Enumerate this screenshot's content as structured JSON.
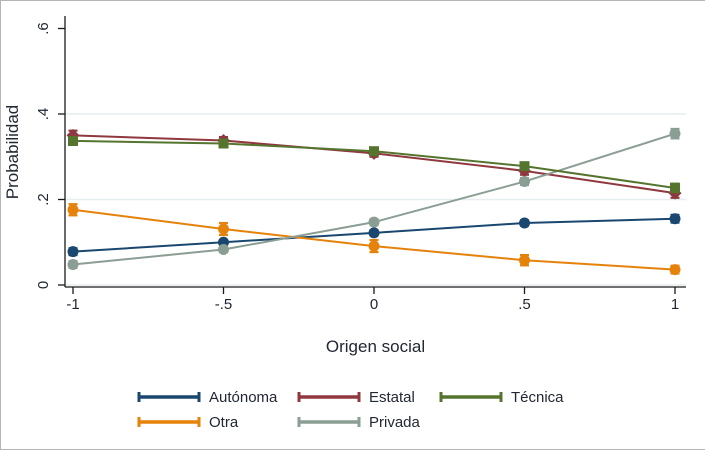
{
  "frame": {
    "border_color": "#b5b5b5",
    "background": "#ffffff"
  },
  "chart_data": {
    "type": "line",
    "title": "",
    "xlabel": "Origen social",
    "ylabel": "Probabilidad",
    "x": [
      -1,
      -0.5,
      0,
      0.5,
      1
    ],
    "x_tick_labels": [
      "-1",
      "-.5",
      "0",
      ".5",
      "1"
    ],
    "y_ticks": [
      0,
      0.2,
      0.4,
      0.6
    ],
    "y_tick_labels": [
      "0",
      ".2",
      ".4",
      ".6"
    ],
    "xlim": [
      -1.05,
      1.08
    ],
    "ylim": [
      0,
      0.63
    ],
    "grid_values": [
      0,
      0.2,
      0.4
    ],
    "grid_on": true,
    "grid_color": "#e6eef0",
    "axis_color": "#1a1a1a",
    "text_color": "#212733",
    "legend_position": "bottom",
    "legend_rows": [
      [
        "Autónoma",
        "Estatal",
        "Técnica"
      ],
      [
        "Otra",
        "Privada"
      ]
    ],
    "series": [
      {
        "name": "Autónoma",
        "color": "#1a476f",
        "marker": "circle",
        "values": [
          0.078,
          0.1,
          0.122,
          0.145,
          0.155
        ],
        "ci": [
          0.008,
          0.005,
          0.006,
          0.006,
          0.009
        ]
      },
      {
        "name": "Estatal",
        "color": "#90383f",
        "marker": "diamond",
        "values": [
          0.35,
          0.338,
          0.308,
          0.267,
          0.215
        ],
        "ci": [
          0.011,
          0.008,
          0.008,
          0.009,
          0.011
        ]
      },
      {
        "name": "Técnica",
        "color": "#55752f",
        "marker": "square",
        "values": [
          0.337,
          0.331,
          0.313,
          0.278,
          0.227
        ],
        "ci": [
          0.009,
          0.007,
          0.007,
          0.008,
          0.01
        ]
      },
      {
        "name": "Otra",
        "color": "#e5820a",
        "marker": "circle",
        "values": [
          0.176,
          0.131,
          0.091,
          0.058,
          0.036
        ],
        "ci": [
          0.013,
          0.014,
          0.014,
          0.012,
          0.009
        ]
      },
      {
        "name": "Privada",
        "color": "#8a9e94",
        "marker": "circle",
        "values": [
          0.048,
          0.083,
          0.147,
          0.242,
          0.354
        ],
        "ci": [
          0.008,
          0.006,
          0.007,
          0.008,
          0.011
        ]
      }
    ]
  }
}
